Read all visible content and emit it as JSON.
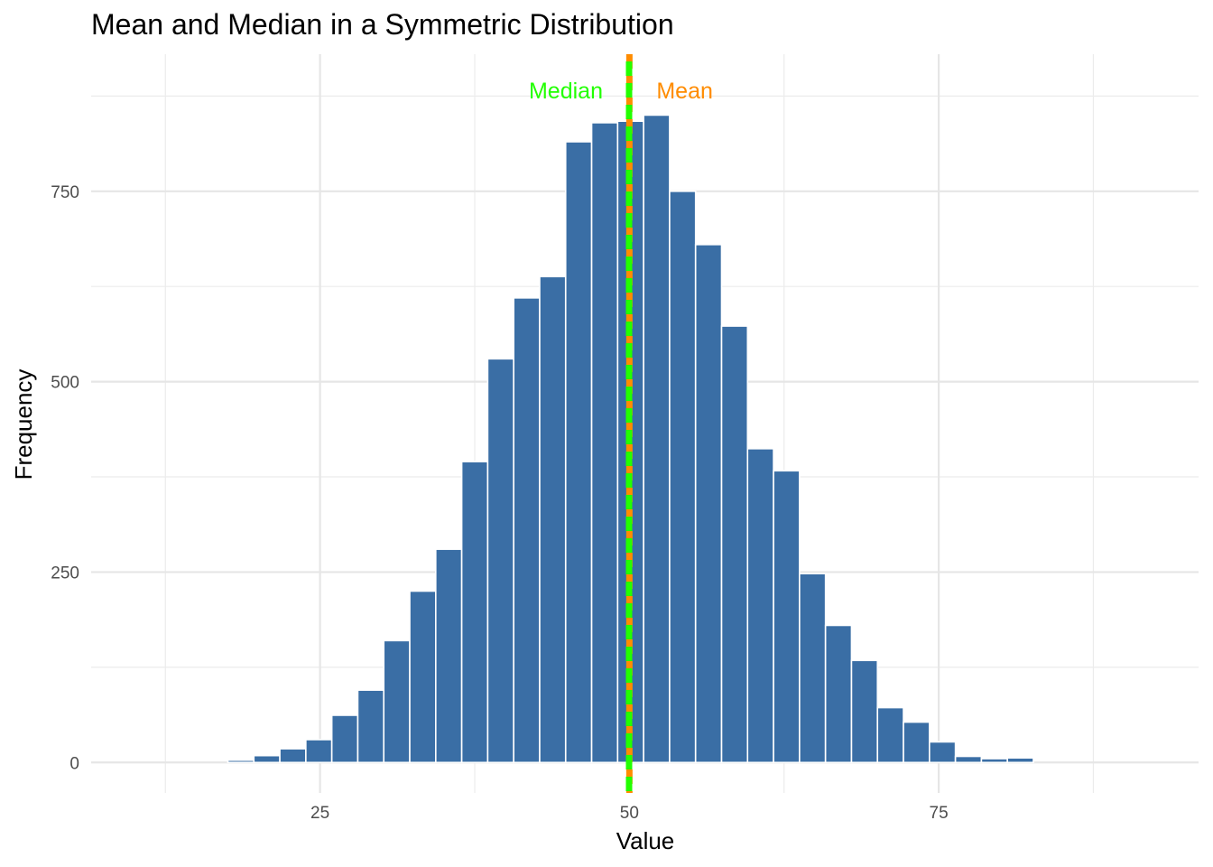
{
  "chart_data": {
    "type": "bar",
    "title": "Mean and Median in a Symmetric Distribution",
    "xlabel": "Value",
    "ylabel": "Frequency",
    "xlim": [
      6.5,
      96
    ],
    "ylim": [
      -40,
      930
    ],
    "x_ticks": [
      25,
      50,
      75
    ],
    "y_ticks": [
      0,
      250,
      500,
      750
    ],
    "grid": true,
    "bin_width": 2.1,
    "bar_color": "#3A6EA5",
    "bar_outline": "#ffffff",
    "bins": [
      {
        "x": 8.1,
        "y": 0
      },
      {
        "x": 10.2,
        "y": 0
      },
      {
        "x": 12.3,
        "y": 0
      },
      {
        "x": 14.4,
        "y": 0
      },
      {
        "x": 16.5,
        "y": 0
      },
      {
        "x": 18.6,
        "y": 3
      },
      {
        "x": 20.7,
        "y": 9
      },
      {
        "x": 22.8,
        "y": 18
      },
      {
        "x": 24.9,
        "y": 30
      },
      {
        "x": 27.0,
        "y": 62
      },
      {
        "x": 29.1,
        "y": 95
      },
      {
        "x": 31.2,
        "y": 160
      },
      {
        "x": 33.3,
        "y": 225
      },
      {
        "x": 35.4,
        "y": 280
      },
      {
        "x": 37.5,
        "y": 395
      },
      {
        "x": 39.6,
        "y": 530
      },
      {
        "x": 41.7,
        "y": 610
      },
      {
        "x": 43.8,
        "y": 638
      },
      {
        "x": 45.9,
        "y": 815
      },
      {
        "x": 48.0,
        "y": 840
      },
      {
        "x": 50.1,
        "y": 842
      },
      {
        "x": 52.2,
        "y": 850
      },
      {
        "x": 54.3,
        "y": 750
      },
      {
        "x": 56.4,
        "y": 680
      },
      {
        "x": 58.5,
        "y": 573
      },
      {
        "x": 60.6,
        "y": 412
      },
      {
        "x": 62.7,
        "y": 383
      },
      {
        "x": 64.8,
        "y": 248
      },
      {
        "x": 66.9,
        "y": 180
      },
      {
        "x": 69.0,
        "y": 134
      },
      {
        "x": 71.1,
        "y": 72
      },
      {
        "x": 73.2,
        "y": 53
      },
      {
        "x": 75.3,
        "y": 27
      },
      {
        "x": 77.4,
        "y": 8
      },
      {
        "x": 79.5,
        "y": 5
      },
      {
        "x": 81.6,
        "y": 6
      },
      {
        "x": 83.7,
        "y": 0
      },
      {
        "x": 85.8,
        "y": 0
      },
      {
        "x": 87.9,
        "y": 0
      },
      {
        "x": 90.0,
        "y": 0
      },
      {
        "x": 92.1,
        "y": 0
      },
      {
        "x": 94.2,
        "y": 0
      }
    ],
    "reference_lines": [
      {
        "name": "Mean",
        "value": 50.0,
        "color": "#FF8C00",
        "label_side": "right"
      },
      {
        "name": "Median",
        "value": 49.9,
        "color": "#22FF00",
        "label_side": "left"
      }
    ]
  }
}
